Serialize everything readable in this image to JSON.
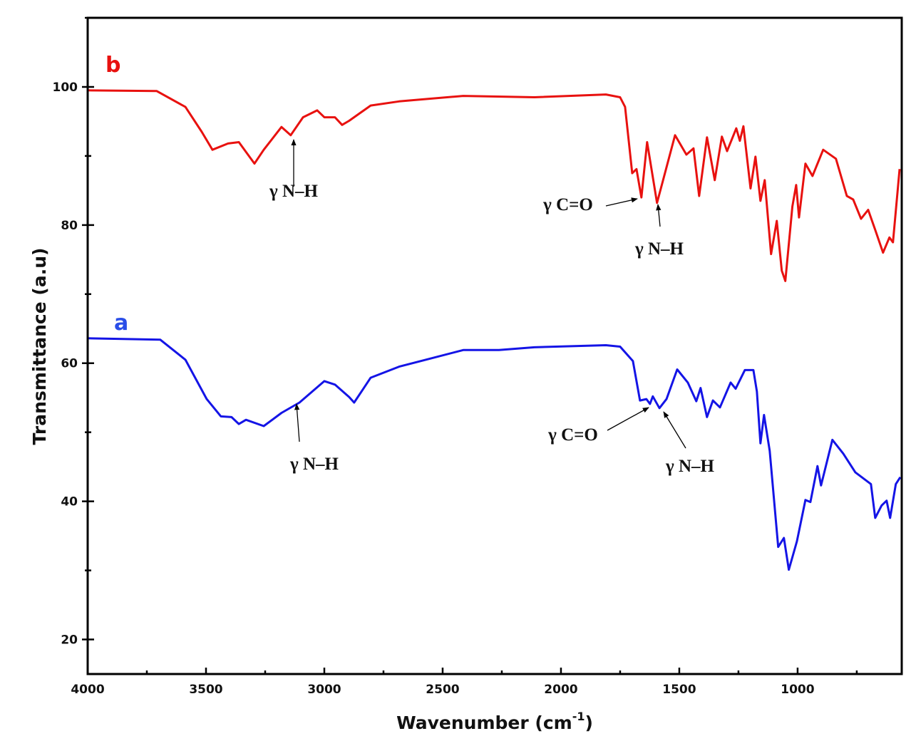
{
  "chart_data": {
    "type": "line",
    "title": "",
    "xlabel": "Wavenumber (cm",
    "xlabel_sup": "-1",
    "xlabel_end": ")",
    "ylabel": "Transmittance (a.u)",
    "xlim": [
      4000,
      560
    ],
    "ylim": [
      15,
      110
    ],
    "x_reversed": true,
    "grid": false,
    "x_ticks": [
      4000,
      3500,
      3000,
      2500,
      2000,
      1500,
      1000
    ],
    "x_minor_step": 250,
    "y_ticks": [
      20,
      40,
      60,
      80,
      100
    ],
    "y_minor_step": 10,
    "series": [
      {
        "name": "b",
        "color": "#e8110f",
        "x": [
          4000,
          3708,
          3587,
          3518,
          3473,
          3407,
          3361,
          3295,
          3256,
          3181,
          3142,
          3090,
          3030,
          3000,
          2955,
          2925,
          2895,
          2804,
          2684,
          2413,
          2112,
          1810,
          1750,
          1729,
          1699,
          1681,
          1660,
          1636,
          1594,
          1518,
          1470,
          1440,
          1416,
          1383,
          1350,
          1320,
          1298,
          1259,
          1244,
          1229,
          1199,
          1178,
          1157,
          1139,
          1112,
          1088,
          1067,
          1052,
          1022,
          1006,
          994,
          967,
          937,
          892,
          838,
          792,
          765,
          732,
          702,
          672,
          639,
          612,
          597,
          569
        ],
        "y": [
          99.5,
          99.4,
          97.1,
          93.5,
          90.9,
          91.8,
          92.0,
          88.9,
          90.9,
          94.2,
          93.0,
          95.6,
          96.6,
          95.6,
          95.6,
          94.5,
          95.1,
          97.3,
          97.9,
          98.7,
          98.5,
          98.9,
          98.5,
          97.1,
          87.5,
          88.1,
          84.0,
          92.0,
          83.2,
          93.0,
          90.2,
          91.1,
          84.2,
          92.7,
          86.5,
          92.8,
          90.7,
          94.0,
          92.2,
          94.3,
          85.3,
          89.9,
          83.5,
          86.5,
          75.8,
          80.6,
          73.4,
          71.9,
          82.7,
          85.8,
          81.1,
          88.9,
          87.1,
          90.9,
          89.6,
          84.2,
          83.7,
          80.9,
          82.2,
          79.3,
          76.0,
          78.2,
          77.5,
          88.1
        ]
      },
      {
        "name": "a",
        "color": "#1414e6",
        "x": [
          4000,
          3693,
          3587,
          3497,
          3437,
          3392,
          3361,
          3331,
          3256,
          3181,
          3105,
          3000,
          2955,
          2895,
          2874,
          2804,
          2684,
          2413,
          2262,
          2112,
          1810,
          1750,
          1696,
          1666,
          1639,
          1624,
          1612,
          1584,
          1554,
          1509,
          1464,
          1428,
          1410,
          1383,
          1358,
          1328,
          1283,
          1262,
          1223,
          1187,
          1172,
          1157,
          1142,
          1118,
          1082,
          1058,
          1037,
          1003,
          967,
          946,
          916,
          901,
          853,
          807,
          756,
          690,
          672,
          645,
          624,
          609,
          585,
          566
        ],
        "y": [
          63.6,
          63.4,
          60.5,
          54.8,
          52.3,
          52.2,
          51.2,
          51.8,
          50.9,
          52.8,
          54.3,
          57.4,
          56.9,
          55.1,
          54.3,
          57.9,
          59.5,
          61.9,
          61.9,
          62.3,
          62.6,
          62.4,
          60.3,
          54.6,
          54.8,
          54.1,
          55.2,
          53.5,
          54.8,
          59.1,
          57.2,
          54.5,
          56.4,
          52.2,
          54.6,
          53.6,
          57.2,
          56.3,
          59.0,
          59.0,
          55.9,
          48.4,
          52.5,
          47.3,
          33.4,
          34.7,
          30.1,
          34.2,
          40.2,
          39.9,
          45.1,
          42.3,
          48.9,
          46.9,
          44.2,
          42.5,
          37.6,
          39.4,
          40.1,
          37.6,
          42.5,
          43.5
        ]
      }
    ],
    "annotations": [
      {
        "text": "γ N–H",
        "series": "b",
        "at": 3140
      },
      {
        "text": "γ C=O",
        "series": "b",
        "at": 1660
      },
      {
        "text": "γ N–H",
        "series": "b",
        "at": 1594
      },
      {
        "text": "γ N–H",
        "series": "a",
        "at": 3120
      },
      {
        "text": "γ C=O",
        "series": "a",
        "at": 1620
      },
      {
        "text": "γ N–H",
        "series": "a",
        "at": 1584
      }
    ]
  }
}
